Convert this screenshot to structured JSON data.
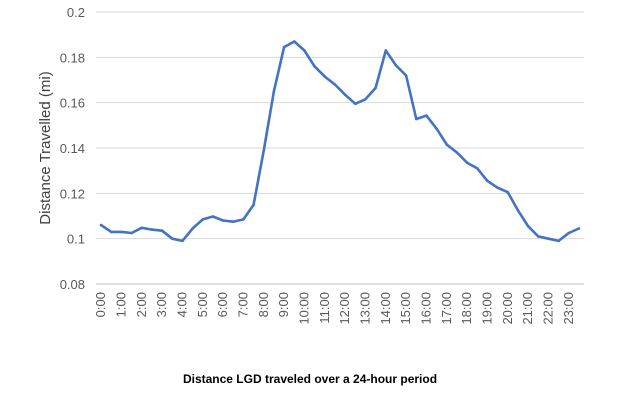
{
  "caption": "Distance LGD traveled over a 24-hour period",
  "chart_data": {
    "type": "line",
    "title": "",
    "ylabel": "Distance Travelled (mi)",
    "xlabel": "",
    "ylim": [
      0.08,
      0.2
    ],
    "yticks": [
      0.08,
      0.1,
      0.12,
      0.14,
      0.16,
      0.18,
      0.2
    ],
    "ytick_labels": [
      "0.08",
      "0.1",
      "0.12",
      "0.14",
      "0.16",
      "0.18",
      "0.2"
    ],
    "grid": true,
    "line_color": "#4472C4",
    "xtick_labels": [
      "0:00",
      "1:00",
      "2:00",
      "3:00",
      "4:00",
      "5:00",
      "6:00",
      "7:00",
      "8:00",
      "9:00",
      "10:00",
      "11:00",
      "12:00",
      "13:00",
      "14:00",
      "15:00",
      "16:00",
      "17:00",
      "18:00",
      "19:00",
      "20:00",
      "21:00",
      "22:00",
      "23:00"
    ],
    "x": [
      "0:00",
      "0:30",
      "1:00",
      "1:30",
      "2:00",
      "2:30",
      "3:00",
      "3:30",
      "4:00",
      "4:30",
      "5:00",
      "5:30",
      "6:00",
      "6:30",
      "7:00",
      "7:30",
      "8:00",
      "8:30",
      "9:00",
      "9:30",
      "10:00",
      "10:30",
      "11:00",
      "11:30",
      "12:00",
      "12:30",
      "13:00",
      "13:30",
      "14:00",
      "14:30",
      "15:00",
      "15:30",
      "16:00",
      "16:30",
      "17:00",
      "17:30",
      "18:00",
      "18:30",
      "19:00",
      "19:30",
      "20:00",
      "20:30",
      "21:00",
      "21:30",
      "22:00",
      "22:30",
      "23:00",
      "23:30"
    ],
    "series": [
      {
        "name": "",
        "values": [
          0.106,
          0.103,
          0.103,
          0.1025,
          0.1048,
          0.104,
          0.1035,
          0.1,
          0.099,
          0.1045,
          0.1085,
          0.1098,
          0.108,
          0.1075,
          0.1085,
          0.115,
          0.139,
          0.165,
          0.1845,
          0.187,
          0.183,
          0.176,
          0.1715,
          0.168,
          0.1635,
          0.1595,
          0.1615,
          0.1665,
          0.183,
          0.1765,
          0.172,
          0.1528,
          0.1543,
          0.1485,
          0.1415,
          0.138,
          0.1335,
          0.131,
          0.1255,
          0.1225,
          0.1205,
          0.1125,
          0.1055,
          0.101,
          0.1,
          0.099,
          0.1025,
          0.1045
        ]
      }
    ]
  }
}
